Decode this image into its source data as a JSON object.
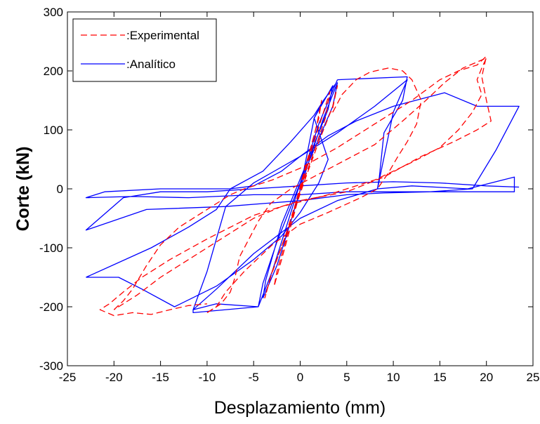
{
  "chart_data": {
    "type": "line",
    "title": "",
    "xlabel": "Desplazamiento (mm)",
    "ylabel": "Corte (kN)",
    "xlim": [
      -25,
      25
    ],
    "ylim": [
      -300,
      300
    ],
    "xticks": [
      -25,
      -20,
      -15,
      -10,
      -5,
      0,
      5,
      10,
      15,
      20,
      25
    ],
    "yticks": [
      -300,
      -200,
      -100,
      0,
      100,
      200,
      300
    ],
    "grid": false,
    "legend_position": "top-left",
    "series": [
      {
        "name": ":Experimental",
        "color": "#ff0000",
        "style": "dashed",
        "segments": [
          [
            [
              0,
              0
            ],
            [
              1,
              60
            ],
            [
              1.8,
              110
            ],
            [
              2.3,
              150
            ],
            [
              2,
              120
            ],
            [
              0.6,
              40
            ],
            [
              -0.5,
              -25
            ],
            [
              -1.5,
              -85
            ],
            [
              -2.5,
              -140
            ],
            [
              -2.8,
              -165
            ],
            [
              -2,
              -120
            ],
            [
              -0.6,
              -40
            ],
            [
              0.4,
              20
            ],
            [
              1.5,
              80
            ],
            [
              2.5,
              130
            ],
            [
              3.2,
              165
            ],
            [
              2.7,
              120
            ],
            [
              1.2,
              50
            ],
            [
              -0.5,
              -25
            ],
            [
              -1.8,
              -90
            ],
            [
              -3.2,
              -150
            ],
            [
              -3.8,
              -185
            ],
            [
              -3,
              -140
            ],
            [
              -1,
              -55
            ],
            [
              0.5,
              15
            ],
            [
              2,
              80
            ],
            [
              3.5,
              140
            ],
            [
              4,
              175
            ],
            [
              3.4,
              130
            ]
          ],
          [
            [
              3.5,
              130
            ],
            [
              4.5,
              160
            ],
            [
              6,
              185
            ],
            [
              7.5,
              198
            ],
            [
              9.5,
              205
            ],
            [
              11,
              200
            ],
            [
              12,
              185
            ],
            [
              13,
              150
            ],
            [
              12.5,
              110
            ],
            [
              11.5,
              80
            ],
            [
              10.5,
              55
            ],
            [
              9.5,
              28
            ],
            [
              8.3,
              0
            ],
            [
              6.5,
              -15
            ],
            [
              3,
              -40
            ],
            [
              0,
              -60
            ],
            [
              -3,
              -95
            ],
            [
              -6,
              -140
            ],
            [
              -8,
              -175
            ],
            [
              -9,
              -200
            ],
            [
              -10,
              -210
            ]
          ],
          [
            [
              -10,
              -210
            ],
            [
              -8.5,
              -195
            ],
            [
              -7.5,
              -175
            ],
            [
              -7,
              -150
            ],
            [
              -6.5,
              -115
            ],
            [
              -5.5,
              -85
            ],
            [
              -4.5,
              -55
            ],
            [
              -3.2,
              -25
            ],
            [
              -1,
              0
            ],
            [
              2,
              25
            ],
            [
              5,
              50
            ],
            [
              8,
              75
            ],
            [
              11,
              115
            ],
            [
              13.5,
              150
            ],
            [
              15.5,
              180
            ],
            [
              17.5,
              205
            ],
            [
              19,
              215
            ],
            [
              20,
              222
            ],
            [
              19.5,
              205
            ],
            [
              19,
              185
            ],
            [
              19.5,
              160
            ],
            [
              18.5,
              130
            ],
            [
              17,
              100
            ],
            [
              15,
              70
            ],
            [
              12,
              45
            ],
            [
              8,
              15
            ],
            [
              3,
              -10
            ],
            [
              -2,
              -30
            ],
            [
              -5,
              -50
            ],
            [
              -9,
              -90
            ],
            [
              -12,
              -120
            ],
            [
              -15,
              -150
            ],
            [
              -17.5,
              -180
            ],
            [
              -19.5,
              -200
            ],
            [
              -20,
              -205
            ]
          ],
          [
            [
              -20,
              -205
            ],
            [
              -19,
              -190
            ],
            [
              -18,
              -170
            ],
            [
              -16.5,
              -130
            ],
            [
              -15,
              -95
            ],
            [
              -13,
              -65
            ],
            [
              -11,
              -45
            ],
            [
              -9,
              -25
            ],
            [
              -7.5,
              -10
            ],
            [
              -6,
              0
            ],
            [
              -3,
              15
            ],
            [
              0,
              35
            ],
            [
              4,
              70
            ],
            [
              8,
              110
            ],
            [
              12,
              150
            ],
            [
              15,
              185
            ],
            [
              17,
              200
            ],
            [
              19,
              210
            ],
            [
              20,
              225
            ],
            [
              19.5,
              190
            ],
            [
              20,
              150
            ],
            [
              20.5,
              115
            ],
            [
              19,
              100
            ],
            [
              16.5,
              80
            ],
            [
              13,
              55
            ],
            [
              9,
              20
            ],
            [
              5,
              -5
            ],
            [
              0,
              -20
            ],
            [
              -5,
              -45
            ],
            [
              -10,
              -85
            ],
            [
              -14,
              -120
            ],
            [
              -17,
              -150
            ],
            [
              -19,
              -175
            ],
            [
              -20.5,
              -195
            ],
            [
              -21.5,
              -205
            ],
            [
              -20,
              -215
            ],
            [
              -18,
              -210
            ],
            [
              -16,
              -213
            ],
            [
              -14,
              -205
            ],
            [
              -12,
              -198
            ],
            [
              -10,
              -195
            ]
          ]
        ]
      },
      {
        "name": ":Analítico",
        "color": "#0000ff",
        "style": "solid",
        "segments": [
          [
            [
              0,
              0
            ],
            [
              1.5,
              120
            ],
            [
              3.5,
              175
            ],
            [
              3,
              135
            ],
            [
              0.6,
              40
            ],
            [
              -2,
              -60
            ],
            [
              -3.7,
              -155
            ],
            [
              -4,
              -185
            ],
            [
              -2.5,
              -130
            ],
            [
              -1,
              -55
            ],
            [
              0.8,
              40
            ],
            [
              2.5,
              120
            ],
            [
              4,
              180
            ],
            [
              3.5,
              140
            ],
            [
              0.5,
              30
            ],
            [
              -2.5,
              -90
            ],
            [
              -4,
              -160
            ],
            [
              -4.5,
              -200
            ],
            [
              -3,
              -140
            ],
            [
              0,
              10
            ],
            [
              2,
              110
            ],
            [
              4,
              185
            ]
          ],
          [
            [
              -4.5,
              -200
            ],
            [
              -9,
              -195
            ],
            [
              -11.5,
              -205
            ],
            [
              -10,
              -140
            ],
            [
              -8,
              -30
            ],
            [
              -5,
              10
            ],
            [
              0,
              55
            ],
            [
              4,
              95
            ],
            [
              8,
              140
            ],
            [
              11.5,
              185
            ],
            [
              10,
              130
            ],
            [
              8.3,
              0
            ],
            [
              4,
              -20
            ],
            [
              0,
              -50
            ],
            [
              -5,
              -110
            ],
            [
              -9,
              -170
            ],
            [
              -11.5,
              -205
            ],
            [
              -11.5,
              -210
            ],
            [
              -4.5,
              -200
            ]
          ],
          [
            [
              4,
              185
            ],
            [
              11.5,
              190
            ],
            [
              11,
              150
            ],
            [
              9,
              95
            ],
            [
              8.5,
              20
            ],
            [
              8.3,
              0
            ],
            [
              12,
              5
            ],
            [
              18,
              0
            ],
            [
              23,
              20
            ],
            [
              23,
              -5
            ],
            [
              14,
              -5
            ],
            [
              5,
              -5
            ],
            [
              0,
              -10
            ],
            [
              -5,
              -10
            ],
            [
              -12,
              -15
            ],
            [
              -18,
              -13
            ],
            [
              -23,
              -15
            ],
            [
              -21,
              -5
            ],
            [
              -15,
              0
            ],
            [
              -7.5,
              0
            ],
            [
              -5,
              5
            ],
            [
              -2,
              30
            ],
            [
              0,
              55
            ],
            [
              3,
              90
            ],
            [
              6,
              115
            ],
            [
              10,
              140
            ],
            [
              15.5,
              163
            ],
            [
              19,
              140
            ],
            [
              23.5,
              140
            ],
            [
              21,
              65
            ],
            [
              18.5,
              0
            ],
            [
              14,
              -5
            ],
            [
              9,
              -7
            ],
            [
              5,
              -10
            ],
            [
              0,
              -20
            ],
            [
              -8,
              -30
            ],
            [
              -16.5,
              -35
            ],
            [
              -23,
              -70
            ],
            [
              -19,
              -15
            ],
            [
              -15,
              -5
            ],
            [
              -10,
              -5
            ],
            [
              -5,
              0
            ],
            [
              0,
              5
            ],
            [
              5,
              10
            ],
            [
              10,
              12
            ],
            [
              15,
              10
            ],
            [
              20,
              5
            ],
            [
              23.5,
              3
            ]
          ],
          [
            [
              -23,
              -150
            ],
            [
              -19.5,
              -150
            ],
            [
              -17,
              -170
            ],
            [
              -13.5,
              -200
            ],
            [
              -9,
              -165
            ],
            [
              -5,
              -120
            ],
            [
              -2,
              -80
            ],
            [
              0,
              -40
            ],
            [
              2,
              10
            ],
            [
              3,
              50
            ],
            [
              1.5,
              120
            ],
            [
              2.5,
              150
            ],
            [
              3.8,
              178
            ]
          ],
          [
            [
              -23,
              -150
            ],
            [
              -16,
              -100
            ],
            [
              -12,
              -65
            ],
            [
              -9,
              -35
            ],
            [
              -7.5,
              0
            ],
            [
              -4,
              30
            ],
            [
              -1,
              80
            ],
            [
              1.5,
              125
            ],
            [
              2.5,
              150
            ]
          ]
        ]
      }
    ]
  }
}
